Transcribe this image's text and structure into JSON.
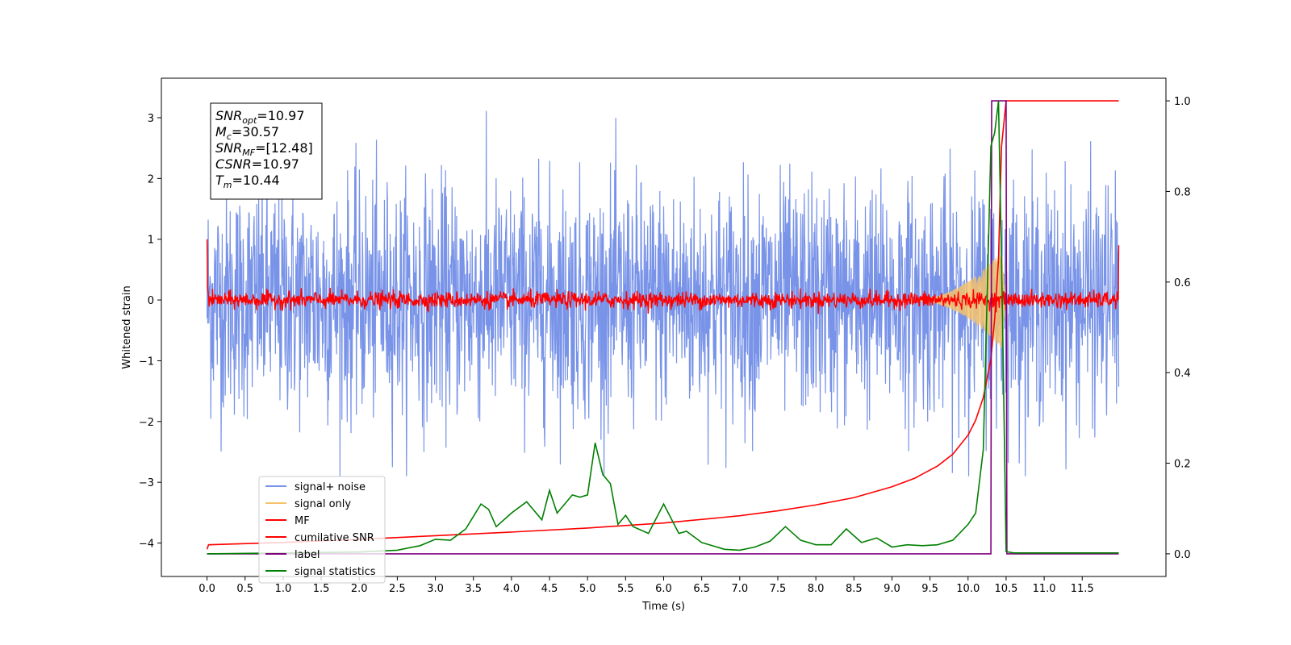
{
  "chart_data": {
    "type": "line",
    "xlabel": "Time (s)",
    "ylabel": "Whitened strain",
    "xlim": [
      -0.6,
      12.6
    ],
    "ylim": [
      -4.55,
      3.65
    ],
    "y2lim": [
      -0.05,
      1.05
    ],
    "x_ticks": [
      "0.0",
      "0.5",
      "1.0",
      "1.5",
      "2.0",
      "2.5",
      "3.0",
      "3.5",
      "4.0",
      "4.5",
      "5.0",
      "5.5",
      "6.0",
      "6.5",
      "7.0",
      "7.5",
      "8.0",
      "8.5",
      "9.0",
      "9.5",
      "10.0",
      "10.5",
      "11.0",
      "11.5"
    ],
    "x_tick_values": [
      0.0,
      0.5,
      1.0,
      1.5,
      2.0,
      2.5,
      3.0,
      3.5,
      4.0,
      4.5,
      5.0,
      5.5,
      6.0,
      6.5,
      7.0,
      7.5,
      8.0,
      8.5,
      9.0,
      9.5,
      10.0,
      10.5,
      11.0,
      11.5
    ],
    "y_ticks": [
      "3",
      "2",
      "1",
      "0",
      "−1",
      "−2",
      "−3",
      "−4"
    ],
    "y_tick_values": [
      3,
      2,
      1,
      0,
      -1,
      -2,
      -3,
      -4
    ],
    "y2_ticks": [
      "1.0",
      "0.8",
      "0.6",
      "0.4",
      "0.2",
      "0.0"
    ],
    "y2_tick_values": [
      1.0,
      0.8,
      0.6,
      0.4,
      0.2,
      0.0
    ],
    "info_box": [
      {
        "main": "SNR",
        "sub": "opt",
        "value": "=10.97"
      },
      {
        "main": "M",
        "sub": "c",
        "value": "=30.57"
      },
      {
        "main": "SNR",
        "sub": "MF",
        "value": "=[12.48]"
      },
      {
        "main": "CSNR",
        "sub": "",
        "value": "=10.97"
      },
      {
        "main": "T",
        "sub": "m",
        "value": "=10.44"
      }
    ],
    "legend": [
      {
        "label": "signal+ noise",
        "color": "#7893e8"
      },
      {
        "label": "signal only",
        "color": "#f5c26b"
      },
      {
        "label": "MF",
        "color": "#ff0000"
      },
      {
        "label": "cumilative SNR",
        "color": "#ff0000"
      },
      {
        "label": "label",
        "color": "#800080"
      },
      {
        "label": "signal statistics",
        "color": "#008000"
      }
    ],
    "legend_loc": "lower-left",
    "series": [
      {
        "name": "signal+ noise",
        "axis": "left",
        "color": "#7893e8",
        "noise_envelope": [
          -2.9,
          3.3
        ],
        "x_range": [
          0.0,
          11.98
        ]
      },
      {
        "name": "signal only",
        "axis": "left",
        "color": "#f5c26b",
        "chirp_peak_x": 10.44,
        "chirp_peak_amplitude": 0.8
      },
      {
        "name": "MF",
        "axis": "left",
        "color": "#ff0000",
        "baseline": 0.0,
        "noise_amplitude": 0.15,
        "start_value": 1.0,
        "end_value": 0.9
      },
      {
        "name": "cumilative SNR",
        "axis": "right",
        "x": [
          0.0,
          0.02,
          1.0,
          2.0,
          3.0,
          4.0,
          5.0,
          6.0,
          7.0,
          7.5,
          8.0,
          8.5,
          9.0,
          9.3,
          9.6,
          9.8,
          10.0,
          10.1,
          10.2,
          10.3,
          10.35,
          10.4,
          10.42,
          10.44,
          10.5,
          11.98
        ],
        "values": [
          0.01,
          0.02,
          0.025,
          0.032,
          0.04,
          0.048,
          0.057,
          0.068,
          0.084,
          0.095,
          0.108,
          0.124,
          0.148,
          0.167,
          0.194,
          0.22,
          0.262,
          0.295,
          0.345,
          0.43,
          0.52,
          0.65,
          0.78,
          0.9,
          1.0,
          1.0
        ]
      },
      {
        "name": "label",
        "axis": "right",
        "color": "#800080",
        "x": [
          0.0,
          10.3,
          10.31,
          10.4,
          10.41,
          10.5,
          10.51,
          11.98
        ],
        "values": [
          0.0,
          0.0,
          1.0,
          1.0,
          1.0,
          1.0,
          0.0,
          0.0
        ]
      },
      {
        "name": "signal statistics",
        "axis": "right",
        "color": "#008000",
        "x": [
          0.0,
          1.0,
          2.0,
          2.5,
          2.8,
          3.0,
          3.2,
          3.4,
          3.6,
          3.7,
          3.8,
          4.0,
          4.2,
          4.4,
          4.5,
          4.6,
          4.8,
          4.9,
          5.0,
          5.1,
          5.2,
          5.3,
          5.4,
          5.5,
          5.6,
          5.8,
          6.0,
          6.2,
          6.3,
          6.5,
          6.8,
          7.0,
          7.2,
          7.4,
          7.6,
          7.8,
          8.0,
          8.2,
          8.4,
          8.6,
          8.8,
          9.0,
          9.2,
          9.4,
          9.6,
          9.8,
          10.0,
          10.1,
          10.2,
          10.3,
          10.35,
          10.4,
          10.45,
          10.5,
          10.6,
          11.98
        ],
        "values": [
          0.0,
          0.002,
          0.004,
          0.008,
          0.018,
          0.032,
          0.03,
          0.055,
          0.11,
          0.098,
          0.06,
          0.09,
          0.115,
          0.075,
          0.14,
          0.09,
          0.13,
          0.125,
          0.13,
          0.245,
          0.175,
          0.155,
          0.065,
          0.085,
          0.06,
          0.045,
          0.11,
          0.045,
          0.05,
          0.025,
          0.01,
          0.008,
          0.015,
          0.028,
          0.06,
          0.03,
          0.02,
          0.02,
          0.055,
          0.025,
          0.035,
          0.015,
          0.02,
          0.018,
          0.02,
          0.03,
          0.065,
          0.09,
          0.23,
          0.9,
          0.93,
          1.0,
          0.55,
          0.005,
          0.002,
          0.002
        ]
      }
    ]
  }
}
